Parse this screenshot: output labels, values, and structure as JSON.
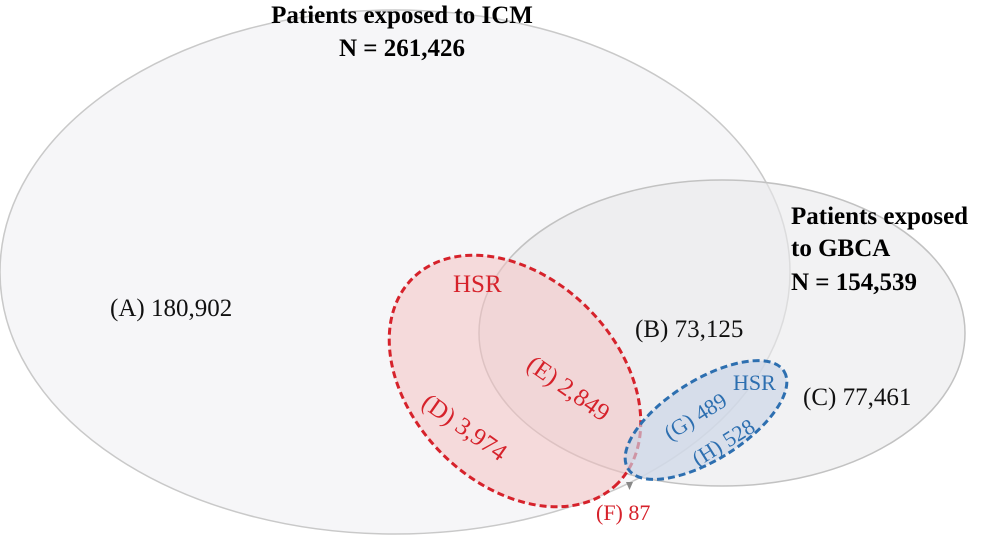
{
  "icm": {
    "title": "Patients exposed to ICM",
    "count": "N = 261,426"
  },
  "gbca": {
    "title_line1": "Patients exposed",
    "title_line2": "to GBCA",
    "count": "N = 154,539"
  },
  "regions": {
    "a": "(A) 180,902",
    "b": "(B) 73,125",
    "c": "(C) 77,461",
    "d": "(D) 3,974",
    "e": "(E) 2,849",
    "f": "(F) 87",
    "g": "(G) 489",
    "h": "(H) 528"
  },
  "hsr_red": "HSR",
  "hsr_blue": "HSR",
  "colors": {
    "red": "#d6222b",
    "blue": "#2d6fb0",
    "outline": "#c8c8c8"
  }
}
